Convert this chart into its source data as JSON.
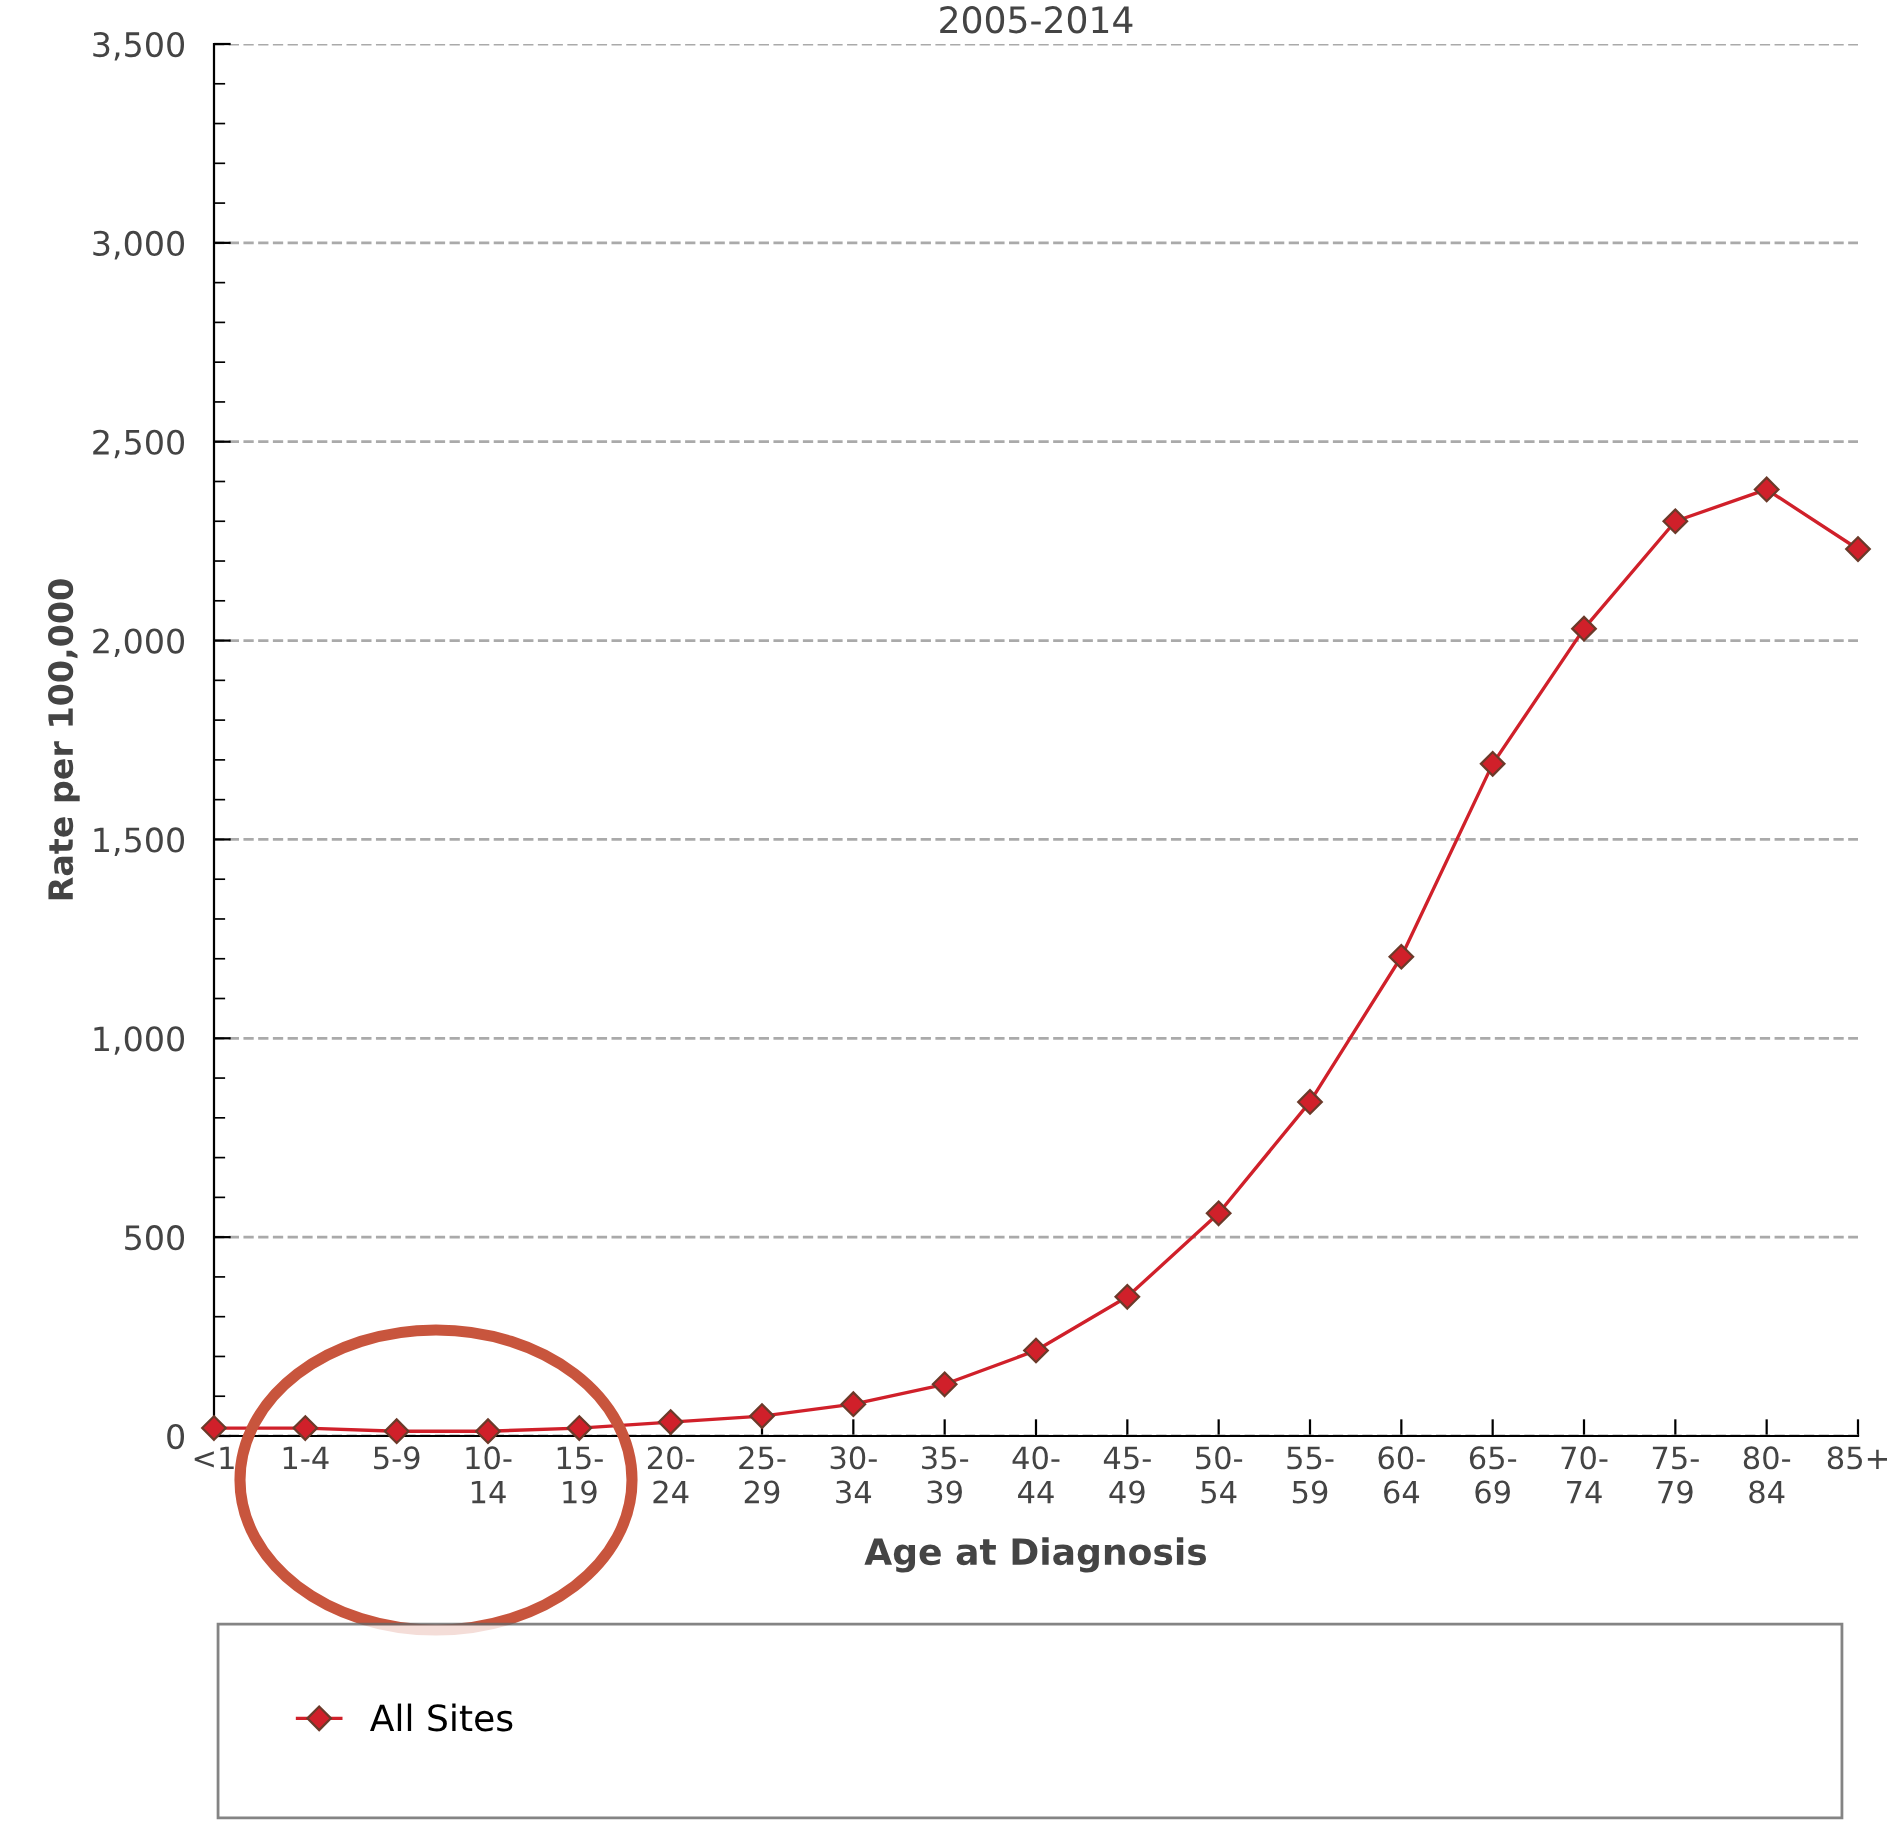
{
  "chart_data": {
    "type": "line",
    "title": "2005-2014",
    "xlabel": "Age at Diagnosis",
    "ylabel": "Rate per 100,000",
    "categories": [
      "<1",
      "1-4",
      "5-9",
      "10-\n14",
      "15-\n19",
      "20-\n24",
      "25-\n29",
      "30-\n34",
      "35-\n39",
      "40-\n44",
      "45-\n49",
      "50-\n54",
      "55-\n59",
      "60-\n64",
      "65-\n69",
      "70-\n74",
      "75-\n79",
      "80-\n84",
      "85+"
    ],
    "series": [
      {
        "name": "All Sites",
        "color": "#d0202a",
        "values": [
          20,
          20,
          12,
          12,
          20,
          35,
          50,
          80,
          130,
          215,
          350,
          560,
          840,
          1205,
          1690,
          2030,
          2300,
          2380,
          2230
        ]
      }
    ],
    "ylim": [
      0,
      3500
    ],
    "yticks": [
      {
        "value": 0,
        "label": "0"
      },
      {
        "value": 500,
        "label": "500"
      },
      {
        "value": 1000,
        "label": "1,000"
      },
      {
        "value": 1500,
        "label": "1,500"
      },
      {
        "value": 2000,
        "label": "2,000"
      },
      {
        "value": 2500,
        "label": "2,500"
      },
      {
        "value": 3000,
        "label": "3,000"
      },
      {
        "value": 3500,
        "label": "3,500"
      }
    ],
    "grid": "y",
    "legend": "bottom",
    "marker": "diamond",
    "line_style": "solid"
  }
}
